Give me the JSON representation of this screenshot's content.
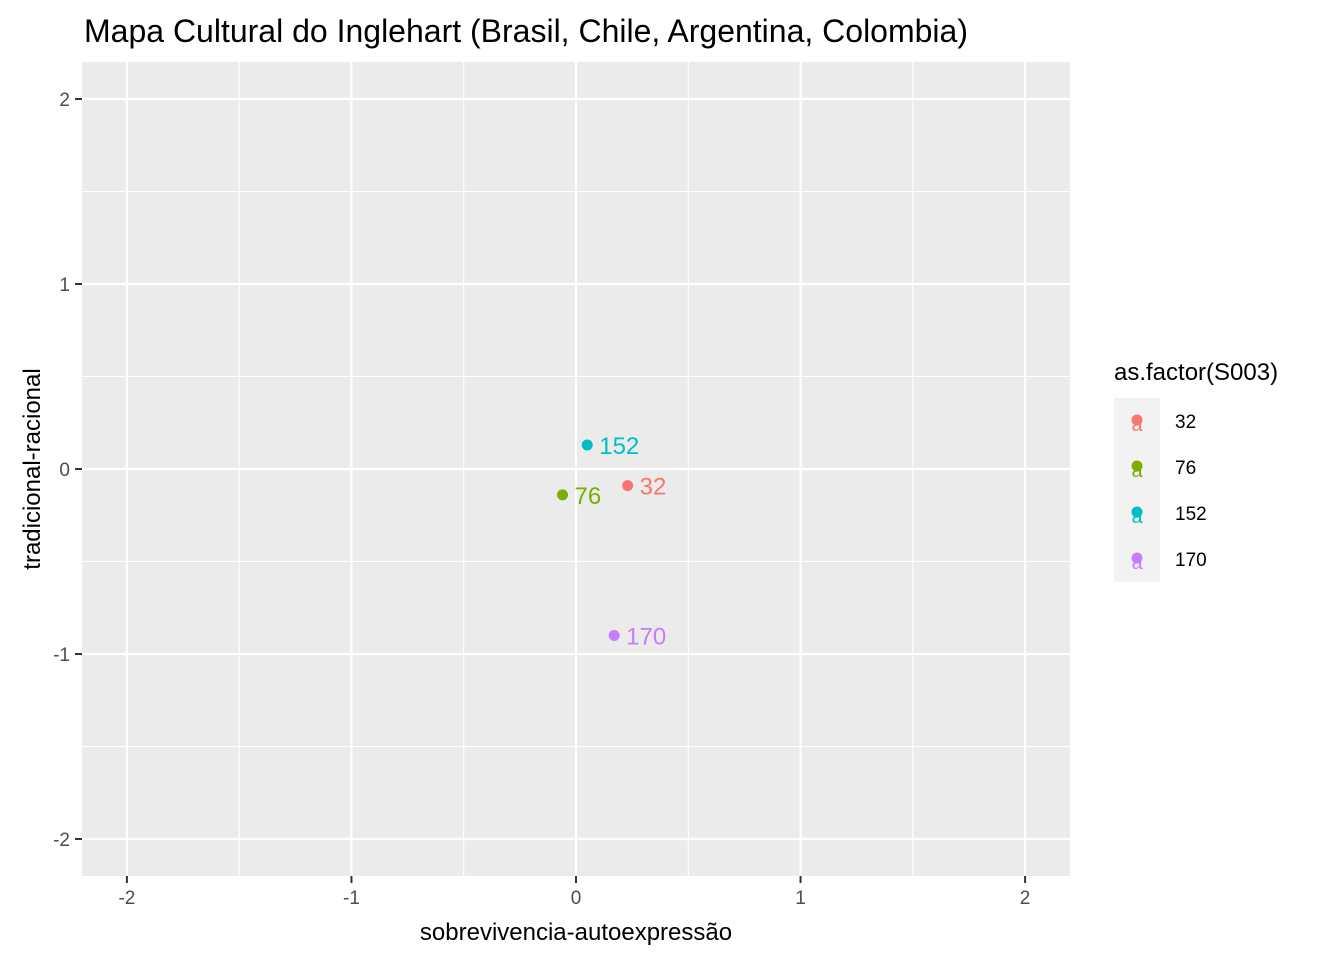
{
  "chart_data": {
    "type": "scatter",
    "title": "Mapa Cultural do Inglehart (Brasil, Chile, Argentina, Colombia)",
    "xlabel": "sobrevivencia-autoexpressão",
    "ylabel": "tradicional-racional",
    "xlim": [
      -2.2,
      2.2
    ],
    "ylim": [
      -2.2,
      2.2
    ],
    "xticks": [
      -2,
      -1,
      0,
      1,
      2
    ],
    "yticks": [
      -2,
      -1,
      0,
      1,
      2
    ],
    "xtick_labels": [
      "-2",
      "-1",
      "0",
      "1",
      "2"
    ],
    "ytick_labels": [
      "-2",
      "-1",
      "0",
      "1",
      "2"
    ],
    "grid": true,
    "legend": {
      "title": "as.factor(S003)",
      "placement": "right",
      "key_glyph": "a"
    },
    "points": [
      {
        "label": "32",
        "x": 0.23,
        "y": -0.09,
        "color": "#F8766D"
      },
      {
        "label": "76",
        "x": -0.06,
        "y": -0.14,
        "color": "#7CAE00"
      },
      {
        "label": "152",
        "x": 0.05,
        "y": 0.13,
        "color": "#00BFC4"
      },
      {
        "label": "170",
        "x": 0.17,
        "y": -0.9,
        "color": "#C77CFF"
      }
    ]
  }
}
